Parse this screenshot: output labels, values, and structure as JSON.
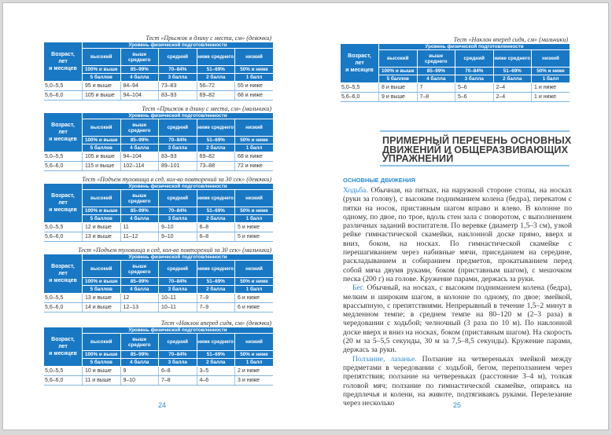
{
  "table_header": {
    "age_lines": [
      "Возраст,",
      "лет",
      "и месяцев"
    ],
    "level_title": "Уровень физической подготовленности",
    "categories": [
      "высокий",
      "выше среднего",
      "средний",
      "ниже среднего",
      "низкий"
    ],
    "percents": [
      "100% и выше",
      "85–99%",
      "70–84%",
      "51–69%",
      "50% и ниже"
    ],
    "points": [
      "5 баллов",
      "4 балла",
      "3 балла",
      "2 балла",
      "1 балл"
    ]
  },
  "left_page": {
    "page_number": "24",
    "tables": [
      {
        "caption": "Тест «Прыжок в длину с места, см» (девочки)",
        "rows": [
          [
            "5,0–5,5",
            "95 и выше",
            "84–94",
            "73–83",
            "56–72",
            "55 и ниже"
          ],
          [
            "5,6–6,0",
            "105 и выше",
            "94–104",
            "83–93",
            "69–82",
            "68 и ниже"
          ]
        ]
      },
      {
        "caption": "Тест «Прыжок в длину с места, см» (мальчики)",
        "rows": [
          [
            "5,0–5,5",
            "105 и выше",
            "94–104",
            "83–93",
            "69–82",
            "68 и ниже"
          ],
          [
            "5,6–6,0",
            "115 и выше",
            "102–114",
            "89–101",
            "73–88",
            "72 и ниже"
          ]
        ]
      },
      {
        "caption": "Тест «Подъем туловища в сед, кол-во повторений за 30 сек» (девочки)",
        "rows": [
          [
            "5,0–5,5",
            "12 и выше",
            "11",
            "9–10",
            "6–8",
            "5 и ниже"
          ],
          [
            "5,6–6,0",
            "13 и выше",
            "11–12",
            "9–10",
            "6–8",
            "5 и ниже"
          ]
        ]
      },
      {
        "caption": "Тест «Подъем туловища в сед, кол-во повторений за 30 сек» (мальчики)",
        "rows": [
          [
            "5,0–5,5",
            "13 и выше",
            "12",
            "10–11",
            "7–9",
            "6 и ниже"
          ],
          [
            "5,6–6,0",
            "14 и выше",
            "12–13",
            "10–11",
            "7–9",
            "6 и ниже"
          ]
        ]
      },
      {
        "caption": "Тест «Наклон вперед сидя, см» (девочки)",
        "rows": [
          [
            "5,0–5,5",
            "10 и выше",
            "9",
            "6–8",
            "3–5",
            "2 и ниже"
          ],
          [
            "5,6–6,0",
            "11 и выше",
            "9–10",
            "7–8",
            "4–6",
            "3 и ниже"
          ]
        ]
      }
    ]
  },
  "right_page": {
    "page_number": "25",
    "tables": [
      {
        "caption": "Тест «Наклон вперед сидя, см» (мальчики)",
        "rows": [
          [
            "5,0–5,5",
            "8 и выше",
            "7",
            "5–6",
            "2–4",
            "1 и ниже"
          ],
          [
            "5,6–6,0",
            "9 и выше",
            "7–8",
            "5–6",
            "2–4",
            "1 и ниже"
          ]
        ]
      }
    ],
    "heading_lines": [
      "ПРИМЕРНЫЙ ПЕРЕЧЕНЬ ОСНОВНЫХ",
      "ДВИЖЕНИЙ И ОБЩЕРАЗВИВАЮЩИХ",
      "УПРАЖНЕНИЙ"
    ],
    "section_title": "ОСНОВНЫЕ ДВИЖЕНИЯ",
    "paragraphs": [
      {
        "lead": "Ходьба.",
        "text": " Обычная, на пятках, на наружной стороне стопы, на носках (руки за голову), с высоким подниманием колена (бедра), перекатом с пятки на носок, приставным шагом вправо и влево. В колонне по одному, по двое, по трое, вдоль стен зала с поворотом, с выполнением различных заданий воспитателя. По веревке (диаметр 1,5–3 см), узкой рейке гимнастической скамейки, наклонной доске прямо, вверх и вниз, боком, на носках. По гимнастической скамейке с перешагиванием через набивные мячи, приседанием на середине, раскладыванием и собиранием предметов, прокатыванием перед собой мяча двумя руками, боком (приставным шагом), с мешочком песка (200 г) на голове. Кружение парами, держась за руки."
      },
      {
        "lead": "Бег.",
        "text": " Обычный, на носках, с высоким подниманием колена (бедра), мелким и широким шагом, в колонне по одному, по двое; змейкой, врассыпную, с препятствиями. Непрерывный в течение 1,5–2 минут в медленном темпе; в среднем темпе на 80–120 м (2–3 раза) в чередовании с ходьбой; челночный (3 раза по 10 м). По наклонной доске вверх и вниз на носках, боком (приставным шагом). На скорость (20 м за 5–5,5 секунды, 30 м за 7,5–8,5 секунды). Кружение парами, держась за руки."
      },
      {
        "lead": "Ползание, лазанье.",
        "text": " Ползание на четвереньках змейкой между предметами в чередовании с ходьбой, бегом, переползанием через препятствия; ползание на четвереньках (расстояние 3–4 м), толкая головой мяч; ползание по гимнастической скамейке, опираясь на предплечья и колени, на животе, подтягиваясь руками. Перелезание через несколько"
      }
    ]
  }
}
